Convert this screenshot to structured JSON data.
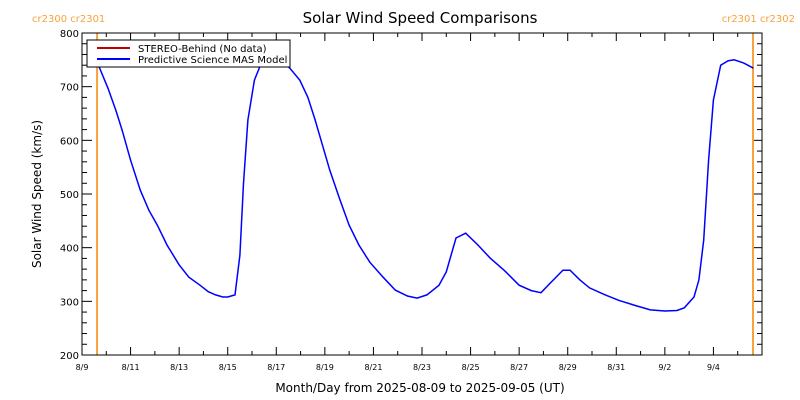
{
  "chart_data": {
    "type": "line",
    "title": "Solar Wind Speed Comparisons",
    "xlabel": "Month/Day from 2025-08-09 to 2025-09-05 (UT)",
    "ylabel": "Solar Wind Speed (km/s)",
    "ylim": [
      200,
      800
    ],
    "xlim_days": [
      0,
      28
    ],
    "yticks": [
      200,
      300,
      400,
      500,
      600,
      700,
      800
    ],
    "xticks": [
      {
        "day": 0,
        "label": "8/9"
      },
      {
        "day": 2,
        "label": "8/11"
      },
      {
        "day": 4,
        "label": "8/13"
      },
      {
        "day": 6,
        "label": "8/15"
      },
      {
        "day": 8,
        "label": "8/17"
      },
      {
        "day": 10,
        "label": "8/19"
      },
      {
        "day": 12,
        "label": "8/21"
      },
      {
        "day": 14,
        "label": "8/23"
      },
      {
        "day": 16,
        "label": "8/25"
      },
      {
        "day": 18,
        "label": "8/27"
      },
      {
        "day": 20,
        "label": "8/29"
      },
      {
        "day": 22,
        "label": "8/31"
      },
      {
        "day": 24,
        "label": "9/2"
      },
      {
        "day": 26,
        "label": "9/4"
      }
    ],
    "legend": {
      "placement": "top-left",
      "entries": [
        {
          "label": "STEREO-Behind (No data)",
          "color": "#c00000"
        },
        {
          "label": "Predictive Science MAS Model",
          "color": "#0000ff"
        }
      ]
    },
    "carrington_markers": [
      {
        "day": 0.62,
        "label": "cr2300 cr2301"
      },
      {
        "day": 27.63,
        "label": "cr2301 cr2302"
      }
    ],
    "marker_color": "#f7a23b",
    "series": [
      {
        "name": "Predictive Science MAS Model",
        "color": "#0000ff",
        "x_days": [
          0.62,
          1.07,
          1.4,
          1.65,
          2.0,
          2.4,
          2.75,
          3.1,
          3.5,
          4.0,
          4.4,
          4.86,
          5.2,
          5.5,
          5.8,
          6.0,
          6.3,
          6.5,
          6.65,
          6.83,
          7.1,
          7.4,
          7.9,
          8.2,
          8.55,
          8.97,
          9.3,
          9.6,
          10.2,
          10.6,
          11.0,
          11.4,
          11.85,
          12.4,
          12.9,
          13.4,
          13.8,
          14.2,
          14.7,
          15.0,
          15.4,
          15.8,
          16.3,
          16.8,
          17.4,
          18.0,
          18.5,
          18.9,
          19.3,
          19.8,
          20.1,
          20.5,
          20.9,
          21.5,
          22.1,
          22.8,
          23.4,
          24.0,
          24.5,
          24.8,
          25.2,
          25.4,
          25.6,
          25.8,
          26.0,
          26.3,
          26.6,
          26.85,
          27.25,
          27.63
        ],
        "values": [
          746,
          697,
          655,
          619,
          563,
          507,
          470,
          442,
          405,
          368,
          345,
          330,
          318,
          312,
          308,
          308,
          312,
          386,
          520,
          638,
          712,
          746,
          750,
          748,
          735,
          712,
          680,
          638,
          545,
          492,
          442,
          405,
          373,
          345,
          321,
          310,
          306,
          312,
          330,
          355,
          418,
          427,
          405,
          381,
          357,
          330,
          320,
          316,
          335,
          358,
          358,
          340,
          325,
          313,
          302,
          292,
          284,
          282,
          283,
          288,
          308,
          340,
          414,
          563,
          675,
          740,
          748,
          750,
          744,
          735
        ]
      }
    ]
  }
}
